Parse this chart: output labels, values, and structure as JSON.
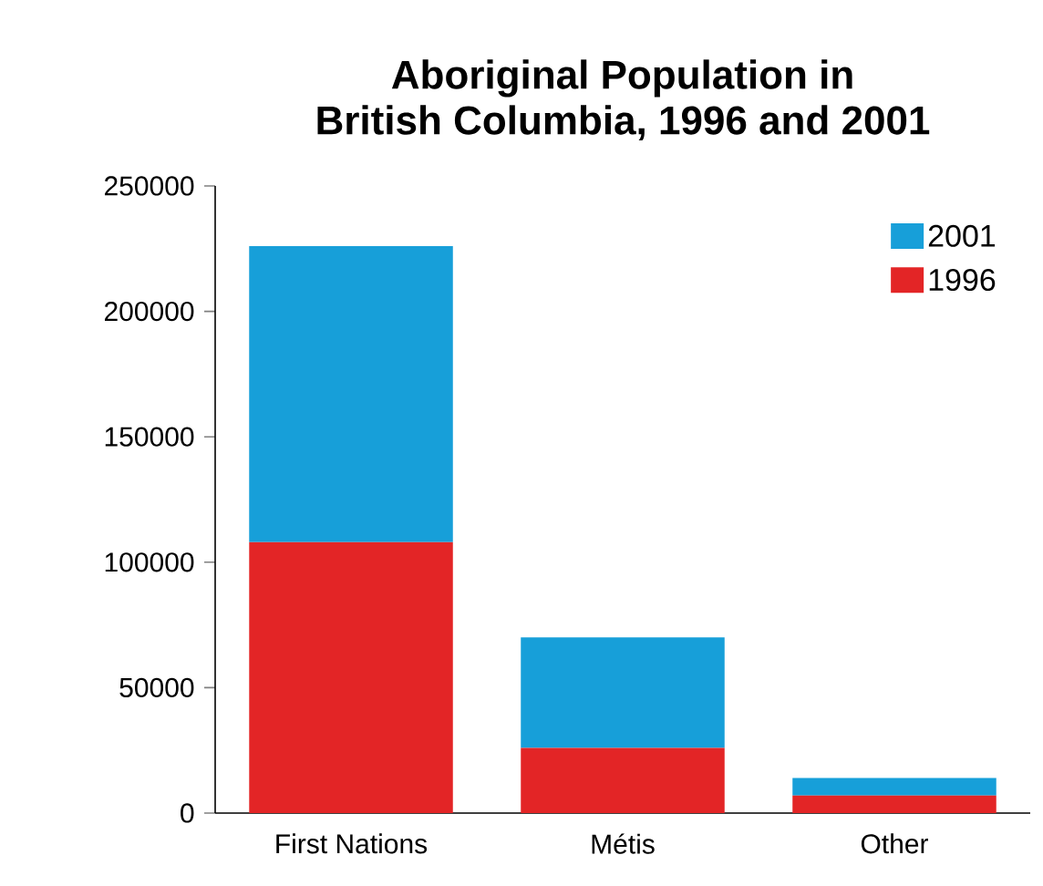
{
  "chart_data": {
    "type": "bar",
    "title": "Aboriginal Population in\nBritish Columbia, 1996 and 2001",
    "categories": [
      "First Nations",
      "Métis",
      "Other"
    ],
    "stacked": true,
    "series": [
      {
        "name": "1996",
        "color": "#e32526",
        "values": [
          108000,
          26000,
          7000
        ]
      },
      {
        "name": "2001",
        "color": "#179fd9",
        "values": [
          118000,
          44000,
          7000
        ]
      }
    ],
    "ylim": [
      0,
      250000
    ],
    "yticks": [
      0,
      50000,
      100000,
      150000,
      200000,
      250000
    ],
    "legend": "top right"
  }
}
